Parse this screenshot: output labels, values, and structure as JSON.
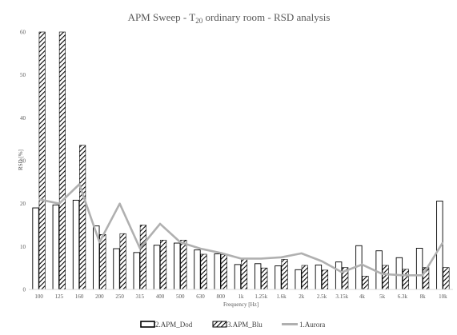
{
  "chart_data": {
    "type": "bar",
    "title": {
      "prefix": "APM Sweep - T",
      "subscript": "20",
      "suffix": " ordinary room - RSD analysis"
    },
    "xlabel": "Frequency [Hz]",
    "ylabel": "RSD [%]",
    "ylim": [
      0,
      60
    ],
    "yticks": [
      0,
      10,
      20,
      30,
      40,
      50,
      60
    ],
    "grid": false,
    "legend_position": "bottom",
    "categories": [
      "100",
      "125",
      "160",
      "200",
      "250",
      "315",
      "400",
      "500",
      "630",
      "800",
      "1k",
      "1.25k",
      "1.6k",
      "2k",
      "2.5k",
      "3.15k",
      "4k",
      "5k",
      "6.3k",
      "8k",
      "10k"
    ],
    "series": [
      {
        "name": "2.APM_Dod",
        "kind": "bar",
        "pattern": "outline",
        "values": [
          19,
          19.7,
          20.8,
          14.8,
          9.5,
          8.6,
          10.3,
          10.8,
          9.2,
          8.3,
          5.8,
          6,
          5.5,
          4.6,
          5.7,
          6.4,
          10.2,
          9,
          7.4,
          9.6,
          20.6
        ]
      },
      {
        "name": "3.APM_Blu",
        "kind": "bar",
        "pattern": "hatch",
        "values": [
          60,
          60,
          33.6,
          12.8,
          13,
          15,
          11.5,
          11.5,
          8.2,
          8.1,
          7.3,
          5,
          7,
          5.6,
          4.5,
          5.1,
          3.1,
          5.6,
          4.7,
          5.1,
          5.1
        ]
      },
      {
        "name": "1.Aurora",
        "kind": "line",
        "color": "#b0b0b0",
        "values": [
          21,
          20,
          24.5,
          11,
          20,
          9.6,
          15.3,
          11,
          9.5,
          8.5,
          7.2,
          7.2,
          7.5,
          8.4,
          6.6,
          4,
          5.8,
          3.6,
          3.3,
          3.3,
          11
        ]
      }
    ]
  }
}
